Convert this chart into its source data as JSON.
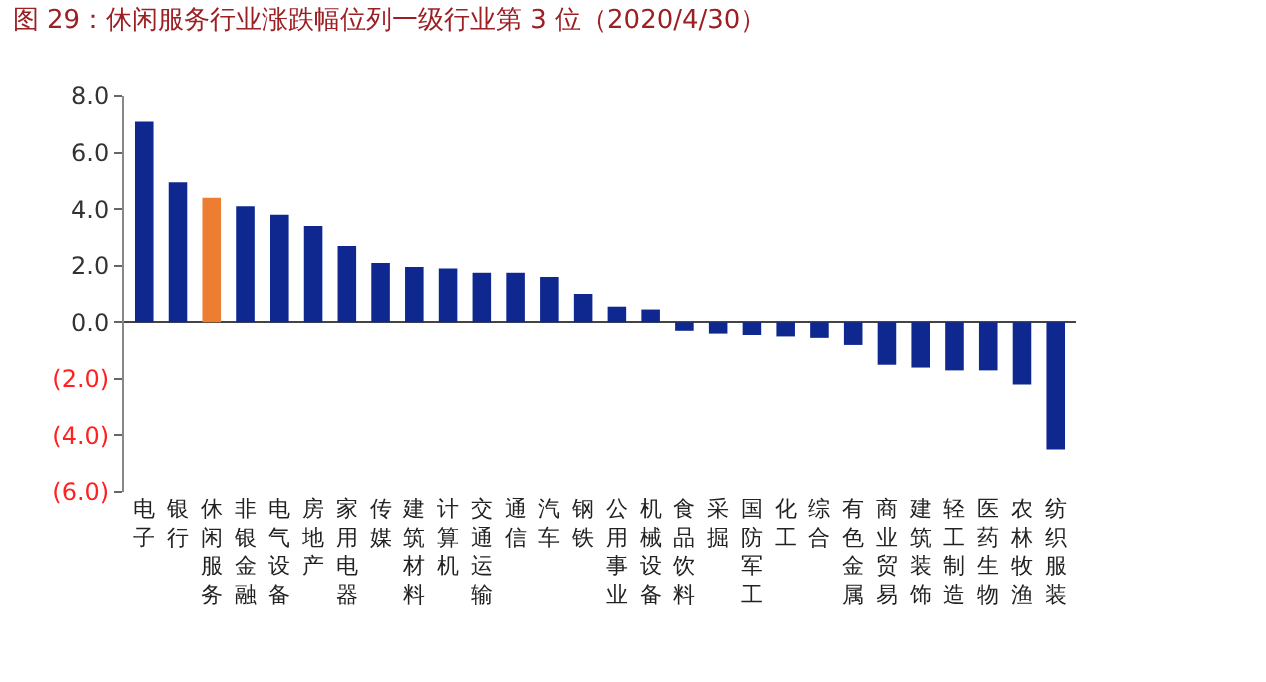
{
  "chart_data": {
    "type": "bar",
    "title": "图 29：休闲服务行业涨跌幅位列一级行业第 3 位（2020/4/30）",
    "categories": [
      "电子",
      "银行",
      "休闲服务",
      "非银金融",
      "电气设备",
      "房地产",
      "家用电器",
      "传媒",
      "建筑材料",
      "计算机",
      "交通运输",
      "通信",
      "汽车",
      "钢铁",
      "公用事业",
      "机械设备",
      "食品饮料",
      "采掘",
      "国防军工",
      "化工",
      "综合",
      "有色金属",
      "商业贸易",
      "建筑装饰",
      "轻工制造",
      "医药生物",
      "农林牧渔",
      "纺织服装"
    ],
    "values": [
      7.1,
      4.95,
      4.4,
      4.1,
      3.8,
      3.4,
      2.7,
      2.1,
      1.95,
      1.9,
      1.75,
      1.75,
      1.6,
      1.0,
      0.55,
      0.45,
      -0.3,
      -0.4,
      -0.45,
      -0.5,
      -0.55,
      -0.8,
      -1.5,
      -1.6,
      -1.7,
      -1.7,
      -2.2,
      -4.5
    ],
    "colors": [
      "#0e2890",
      "#0e2890",
      "#ed7d31",
      "#0e2890",
      "#0e2890",
      "#0e2890",
      "#0e2890",
      "#0e2890",
      "#0e2890",
      "#0e2890",
      "#0e2890",
      "#0e2890",
      "#0e2890",
      "#0e2890",
      "#0e2890",
      "#0e2890",
      "#0e2890",
      "#0e2890",
      "#0e2890",
      "#0e2890",
      "#0e2890",
      "#0e2890",
      "#0e2890",
      "#0e2890",
      "#0e2890",
      "#0e2890",
      "#0e2890",
      "#0e2890"
    ],
    "ylim": [
      -6,
      8
    ],
    "yticks": [
      {
        "value": -6,
        "label": "(6.0)"
      },
      {
        "value": -4,
        "label": "(4.0)"
      },
      {
        "value": -2,
        "label": "(2.0)"
      },
      {
        "value": 0,
        "label": "0.0"
      },
      {
        "value": 2,
        "label": "2.0"
      },
      {
        "value": 4,
        "label": "4.0"
      },
      {
        "value": 6,
        "label": "6.0"
      },
      {
        "value": 8,
        "label": "8.0"
      }
    ],
    "legend": false
  }
}
